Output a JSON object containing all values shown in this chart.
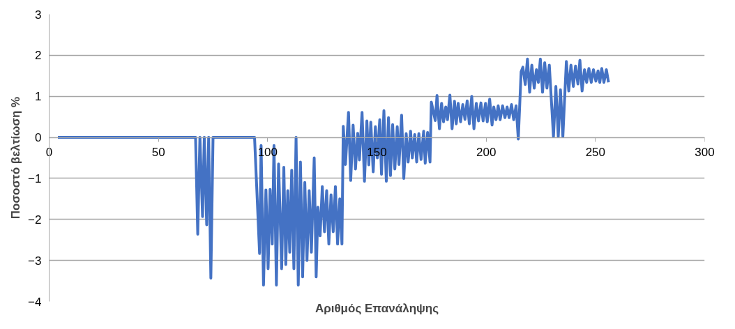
{
  "chart_data": {
    "type": "line",
    "xlabel": "Αριθμός Επανάληψης",
    "ylabel": "Ποσοστό βελτίωση %",
    "xlim": [
      0,
      300
    ],
    "xticks": [
      0,
      50,
      100,
      150,
      200,
      250,
      300
    ],
    "ylim": [
      -4,
      3
    ],
    "yticks": [
      -4,
      -3,
      -2,
      -1,
      0,
      1,
      2,
      3
    ],
    "grid": "y",
    "marker": "none",
    "line_style": "solid",
    "series": [
      {
        "color": "#4472c4",
        "x": [
          4,
          67,
          68,
          69,
          70.2,
          71,
          72.1,
          73,
          74,
          75,
          94,
          96.3,
          97,
          98.1,
          99.2,
          100.2,
          101.1,
          102.1,
          102.9,
          104,
          105,
          106.4,
          107.4,
          108.3,
          109.2,
          110.1,
          111,
          112,
          113,
          114,
          115,
          116,
          117,
          118,
          119,
          120,
          121.3,
          122.2,
          123,
          124,
          125,
          126,
          127,
          128,
          129,
          130,
          131,
          132,
          133,
          134,
          134.6,
          135.6,
          137,
          138,
          139.1,
          140.2,
          141.2,
          142,
          143.2,
          144.3,
          145.4,
          146.3,
          147.2,
          148.3,
          149.3,
          150.2,
          151.3,
          152.1,
          153.2,
          154.3,
          155.3,
          156.2,
          157.2,
          158.2,
          159.3,
          160.1,
          161.3,
          162.3,
          163.4,
          164.3,
          165.4,
          166.2,
          167.3,
          168.2,
          169.2,
          170.2,
          171.4,
          172.1,
          173.2,
          174.3,
          174.9,
          176.7,
          177.5,
          178.6,
          179.6,
          180.5,
          181.5,
          182.3,
          183.4,
          184.4,
          185.5,
          186.3,
          187.2,
          188.3,
          189.3,
          190.3,
          191.3,
          192.3,
          193.4,
          194.4,
          195.5,
          196.5,
          197.6,
          198.6,
          199.7,
          200.5,
          201.6,
          202.7,
          203.5,
          204.5,
          205.5,
          206.4,
          207.5,
          208.6,
          209.6,
          210.5,
          211.6,
          212.6,
          213.7,
          214.7,
          216,
          216.8,
          217.9,
          218.9,
          219.9,
          220.9,
          222,
          223,
          223.9,
          224.8,
          225.8,
          226.8,
          227.8,
          228.9,
          230.8,
          231.9,
          233,
          234,
          235.1,
          236.7,
          237.8,
          238.8,
          239.9,
          240.9,
          242,
          242.9,
          243.9,
          245,
          246,
          247,
          248.1,
          249.1,
          250.2,
          251.2,
          252,
          252.9,
          253.9,
          255,
          256
        ],
        "values": [
          0,
          0,
          -2.36,
          0,
          -1.93,
          0,
          -2.13,
          0,
          -3.43,
          0,
          0,
          -2.83,
          -0.2,
          -3.6,
          -1.28,
          -3.2,
          -1.27,
          -2.6,
          -0.2,
          -3.6,
          -0.65,
          -3.2,
          -0.73,
          -3.1,
          -1.3,
          -2.8,
          -0.8,
          -3.2,
          0,
          -3.6,
          -0.6,
          -3.4,
          -1.1,
          -3.0,
          -1.3,
          -2.8,
          -0.5,
          -3.4,
          -1.7,
          -2.4,
          -1.2,
          -2.3,
          -1.3,
          -2.6,
          -1.4,
          -2.3,
          -1.2,
          -2.6,
          -1.5,
          -2.6,
          0.27,
          -0.66,
          0.61,
          -1.05,
          0.3,
          -0.77,
          0.1,
          -0.55,
          0.61,
          -1.07,
          0.4,
          -0.67,
          0.37,
          -0.84,
          0.26,
          -0.5,
          0.43,
          -0.9,
          0.65,
          -1.07,
          0.48,
          -0.93,
          0.31,
          -0.77,
          0.26,
          -0.66,
          0.54,
          -1.0,
          0.09,
          -0.6,
          0.15,
          -0.5,
          0.07,
          -0.6,
          0.09,
          -0.54,
          0.15,
          -0.63,
          0.12,
          -0.6,
          0.86,
          0.41,
          1.02,
          0.21,
          0.83,
          0.38,
          0.74,
          0.43,
          1.03,
          0.21,
          0.88,
          0.33,
          0.83,
          0.38,
          0.8,
          0.44,
          0.89,
          0.33,
          1.0,
          0.21,
          0.83,
          0.4,
          0.84,
          0.4,
          0.83,
          0.38,
          0.93,
          0.3,
          0.74,
          0.43,
          0.77,
          0.43,
          0.77,
          0.48,
          0.74,
          0.48,
          0.8,
          0.43,
          0.77,
          -0.04,
          1.6,
          1.71,
          1.29,
          1.91,
          1.1,
          1.76,
          1.2,
          1.65,
          1.34,
          1.91,
          1.1,
          1.82,
          1.2,
          1.76,
          0.02,
          1.24,
          0.02,
          1.16,
          0.02,
          1.85,
          1.13,
          1.76,
          1.24,
          1.74,
          1.3,
          1.88,
          1.13,
          1.65,
          1.34,
          1.68,
          1.34,
          1.65,
          1.37,
          1.62,
          1.34,
          1.68,
          1.34,
          1.65,
          1.34
        ]
      }
    ]
  }
}
